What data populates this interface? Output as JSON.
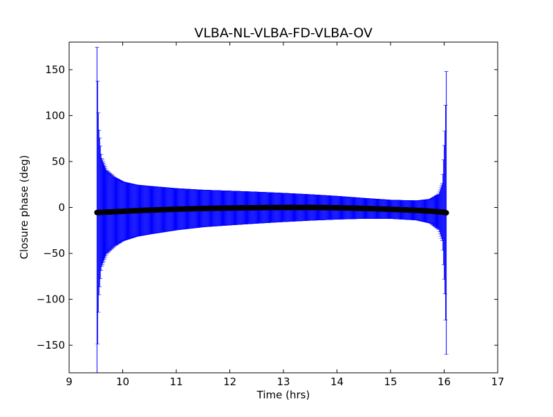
{
  "chart_data": {
    "type": "scatter",
    "title": "VLBA-NL-VLBA-FD-VLBA-OV",
    "xlabel": "Time (hrs)",
    "ylabel": "Closure phase (deg)",
    "xlim": [
      9,
      17
    ],
    "ylim": [
      -180,
      180
    ],
    "x_ticks": [
      9,
      10,
      11,
      12,
      13,
      14,
      15,
      16,
      17
    ],
    "y_ticks": [
      -150,
      -100,
      -50,
      0,
      50,
      100,
      150
    ],
    "x_tick_labels": [
      "9",
      "10",
      "11",
      "12",
      "13",
      "14",
      "15",
      "16",
      "17"
    ],
    "y_tick_labels": [
      "−150",
      "−100",
      "−50",
      "0",
      "50",
      "100",
      "150"
    ],
    "grid": false,
    "legend": "none",
    "series": [
      {
        "x": [
          9.52,
          9.53,
          9.55,
          9.6,
          9.7,
          9.85,
          10.0,
          10.25,
          10.5,
          11.0,
          11.5,
          12.0,
          12.5,
          13.0,
          13.5,
          14.0,
          14.5,
          15.0,
          15.5,
          15.75,
          15.9,
          15.97,
          16.02,
          16.04
        ],
        "y": [
          -5.5,
          -5.5,
          -5.4,
          -5.3,
          -5.0,
          -4.6,
          -4.2,
          -3.5,
          -2.9,
          -1.9,
          -1.1,
          -0.6,
          -0.2,
          0.0,
          0.0,
          -0.3,
          -1.0,
          -2.0,
          -3.2,
          -4.0,
          -4.7,
          -5.1,
          -5.5,
          -5.8
        ],
        "err": [
          180,
          150,
          95,
          60,
          45,
          37,
          32,
          28,
          26,
          22.5,
          20,
          18.5,
          17,
          15.5,
          14,
          12.5,
          11,
          10,
          10.5,
          13,
          19,
          32,
          95,
          154
        ],
        "point_color": "#000000",
        "errorbar_color": "#0000ff"
      }
    ]
  }
}
